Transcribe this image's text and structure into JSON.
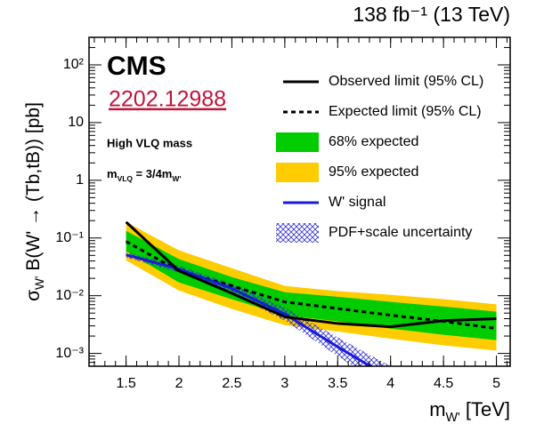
{
  "chart_data": {
    "type": "limit",
    "title": "138 fb⁻¹ (13 TeV)",
    "x_label": {
      "symbol": "m",
      "subscript": "W'",
      "rest": " [TeV]"
    },
    "y_label": {
      "symbol": "σ",
      "subscript": "W'",
      "rest": " B(W' → (Tb,tB)) [pb]"
    },
    "annotations": {
      "experiment": "CMS",
      "reference": "2202.12988",
      "selection": "High VLQ mass",
      "mass_relation": {
        "symbol": "m",
        "subscript": "VLQ",
        "middle": " = 3/4m",
        "subscript2": "W'"
      }
    },
    "x": [
      1.5,
      2,
      2.5,
      3,
      3.5,
      4,
      4.5,
      5
    ],
    "series": [
      {
        "name": "Observed limit (95% CL)",
        "color": "#000000",
        "dash": false,
        "values": [
          0.189,
          0.027,
          0.011,
          0.0043,
          0.0033,
          0.0029,
          0.0037,
          0.004
        ]
      },
      {
        "name": "Expected limit (95% CL)",
        "color": "#000000",
        "dash": true,
        "values": [
          0.087,
          0.027,
          0.0148,
          0.0078,
          0.006,
          0.0046,
          0.0036,
          0.0027
        ]
      },
      {
        "name": "W' signal",
        "color": "#1a1adb",
        "dash": false,
        "values": [
          0.051,
          0.029,
          0.0133,
          0.0048,
          0.0013,
          0.00037,
          null,
          null
        ]
      }
    ],
    "bands": [
      {
        "name": "68% expected",
        "color": "#00cc00",
        "hatch": false,
        "low": [
          0.059,
          0.017,
          0.0087,
          0.0046,
          0.0036,
          0.0027,
          0.0021,
          0.0017
        ],
        "high": [
          0.133,
          0.043,
          0.021,
          0.0115,
          0.0096,
          0.0078,
          0.0065,
          0.0053
        ]
      },
      {
        "name": "95% expected",
        "color": "#ffcc00",
        "hatch": false,
        "low": [
          0.041,
          0.0123,
          0.0059,
          0.0031,
          0.0024,
          0.0018,
          0.00138,
          0.00112
        ],
        "high": [
          0.189,
          0.061,
          0.03,
          0.0148,
          0.012,
          0.0104,
          0.0087,
          0.0071
        ]
      },
      {
        "name": "PDF+scale uncertainty",
        "color": "#3333cc",
        "hatch": true,
        "low": [
          0.046,
          0.025,
          0.011,
          0.0037,
          0.0009,
          0.00022,
          null,
          null
        ],
        "high": [
          0.057,
          0.033,
          0.016,
          0.0062,
          0.0019,
          0.0006,
          null,
          null
        ]
      }
    ],
    "xlim": [
      1.15,
      5.13
    ],
    "xticks": [
      1.5,
      2,
      2.5,
      3,
      3.5,
      4,
      4.5,
      5
    ],
    "ylim": [
      0.0006,
      300
    ],
    "log_y": true,
    "yticks": [
      {
        "value": 100,
        "label": "10²"
      },
      10,
      1,
      {
        "value": 0.1,
        "label": "10⁻¹"
      },
      {
        "value": 0.01,
        "label": "10⁻²"
      },
      {
        "value": 0.001,
        "label": "10⁻³"
      }
    ]
  }
}
